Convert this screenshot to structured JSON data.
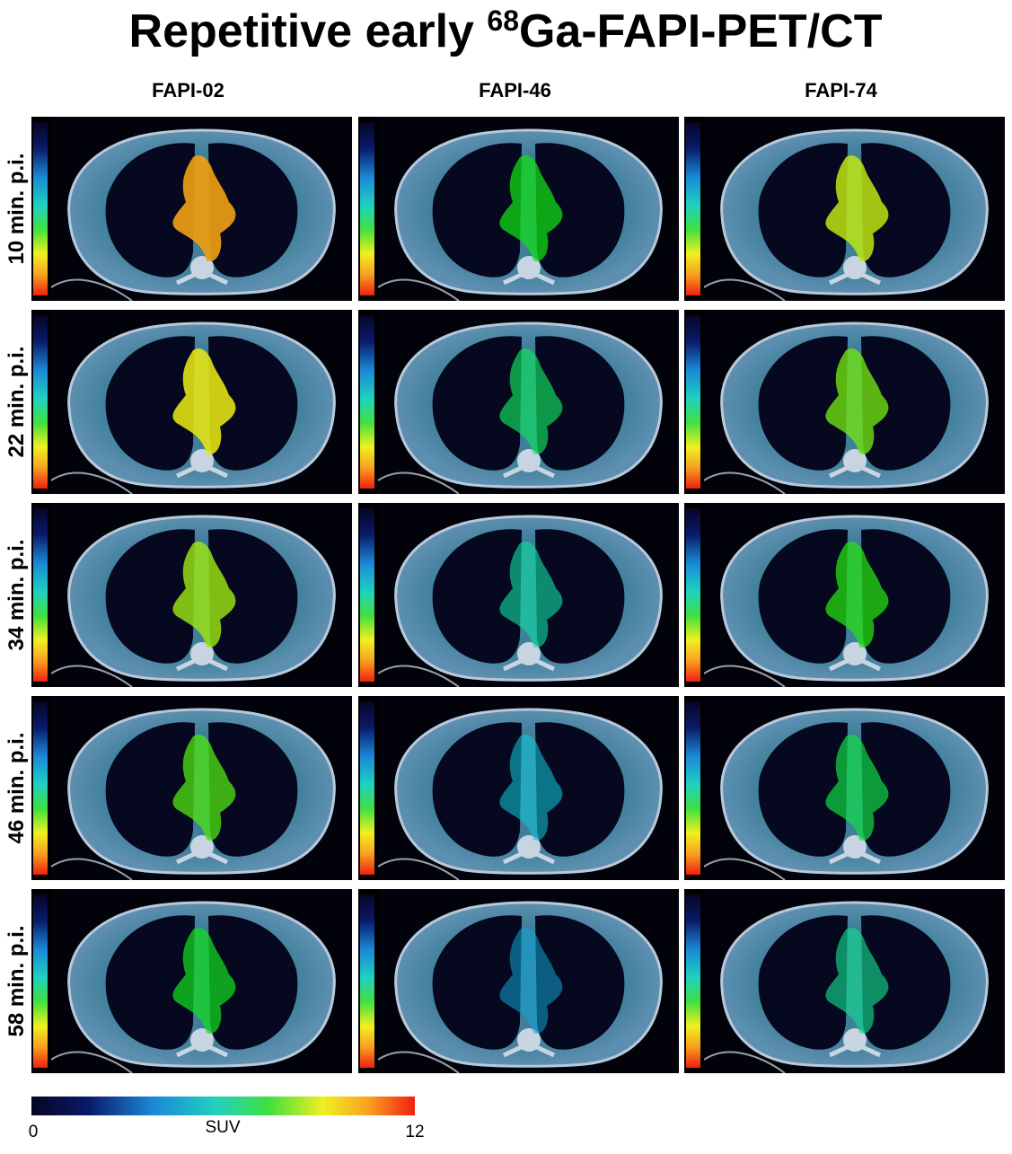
{
  "title": {
    "prefix": "Repetitive early ",
    "superscript": "68",
    "suffix": "Ga-FAPI-PET/CT"
  },
  "columns": [
    "FAPI-02",
    "FAPI-46",
    "FAPI-74"
  ],
  "rows": [
    "10 min. p.i.",
    "22 min. p.i.",
    "34 min. p.i.",
    "46 min. p.i.",
    "58 min. p.i."
  ],
  "colorbar": {
    "label": "SUV",
    "min": "0",
    "max": "12"
  }
}
